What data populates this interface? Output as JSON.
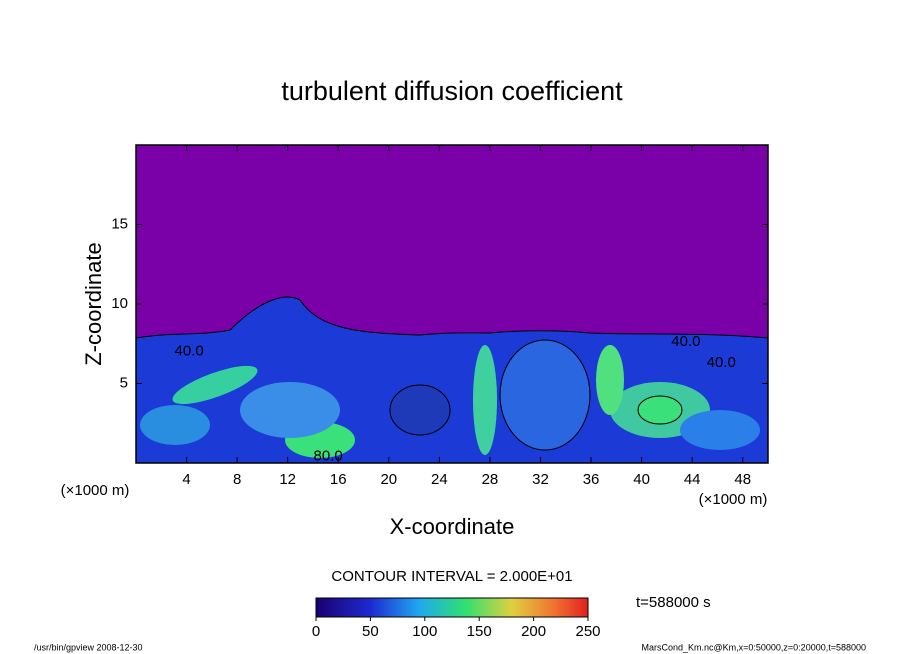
{
  "chart_data": {
    "type": "contour",
    "title": "turbulent diffusion coefficient",
    "xlabel": "X-coordinate",
    "ylabel": "Z-coordinate",
    "x_unit_label": "(×1000 m)",
    "xlim": [
      0,
      50
    ],
    "xticks": [
      4,
      8,
      12,
      16,
      20,
      24,
      28,
      32,
      36,
      40,
      44,
      48
    ],
    "ylim": [
      0,
      20
    ],
    "yticks": [
      5,
      10,
      15
    ],
    "contour_interval": "CONTOUR INTERVAL = 2.000E+01",
    "annotations": [
      {
        "text": "40.0",
        "x": 4.2,
        "z": 7.0
      },
      {
        "text": "40.0",
        "x": 43.5,
        "z": 7.6
      },
      {
        "text": "40.0",
        "x": 46.3,
        "z": 6.3
      },
      {
        "text": "80.0",
        "x": 15.2,
        "z": 0.4
      }
    ],
    "colorbar": {
      "clim": [
        0,
        250
      ],
      "ticks": [
        0,
        50,
        100,
        150,
        200,
        250
      ]
    },
    "time_label": "t=588000 s",
    "footer_left": "/usr/bin/gpview   2008-12-30",
    "footer_right": "MarsCond_Km.nc@Km,x=0:50000,z=0:20000,t=588000"
  }
}
